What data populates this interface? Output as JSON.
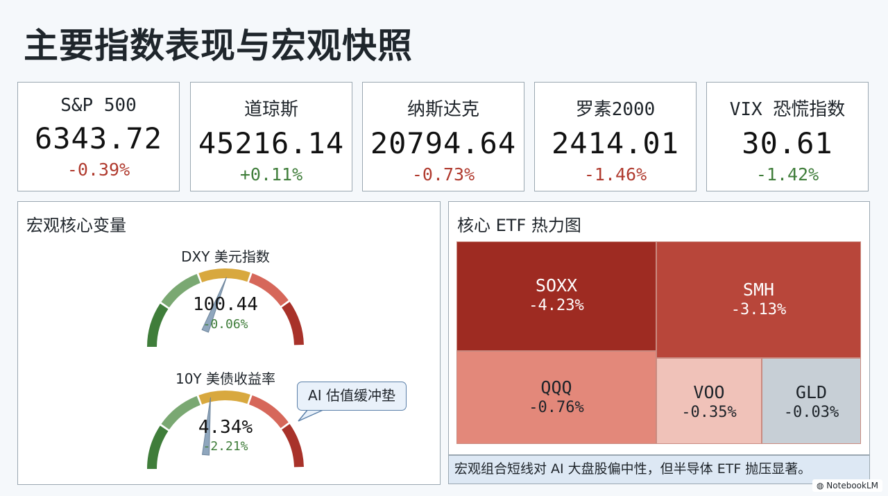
{
  "page": {
    "title": "主要指数表现与宏观快照"
  },
  "indices": [
    {
      "name": "S&P 500",
      "value": "6343.72",
      "change": "-0.39%",
      "dir": "neg"
    },
    {
      "name": "道琼斯",
      "value": "45216.14",
      "change": "+0.11%",
      "dir": "pos"
    },
    {
      "name": "纳斯达克",
      "value": "20794.64",
      "change": "-0.73%",
      "dir": "neg"
    },
    {
      "name": "罗素2000",
      "value": "2414.01",
      "change": "-1.46%",
      "dir": "neg"
    },
    {
      "name": "VIX 恐慌指数",
      "value": "30.61",
      "change": "-1.42%",
      "dir": "pos"
    }
  ],
  "macro": {
    "title": "宏观核心变量",
    "gauges": [
      {
        "label": "DXY 美元指数",
        "value": "100.44",
        "change": "-0.06%",
        "needle_fraction": 0.17
      },
      {
        "label": "10Y 美债收益率",
        "value": "4.34%",
        "change": "-2.21%",
        "needle_fraction": 0.1
      }
    ],
    "callout": "AI 估值缓冲垫"
  },
  "heatmap": {
    "title": "核心 ETF 热力图",
    "tiles": [
      {
        "ticker": "SOXX",
        "change": "-4.23%",
        "color": "#9e2b22",
        "text_color": "#ffffff"
      },
      {
        "ticker": "SMH",
        "change": "-3.13%",
        "color": "#b8463a",
        "text_color": "#ffffff"
      },
      {
        "ticker": "QQQ",
        "change": "-0.76%",
        "color": "#e3887a",
        "text_color": "#1d2329"
      },
      {
        "ticker": "VOO",
        "change": "-0.35%",
        "color": "#f0c2b9",
        "text_color": "#1d2329"
      },
      {
        "ticker": "GLD",
        "change": "-0.03%",
        "color": "#c7cfd6",
        "text_color": "#1d2329"
      }
    ]
  },
  "note": "宏观组合短线对 AI 大盘股偏中性，但半导体 ETF 抛压显著。",
  "brand": "NotebookLM",
  "colors": {
    "negative": "#b03a2e",
    "positive": "#3f7d3a"
  }
}
